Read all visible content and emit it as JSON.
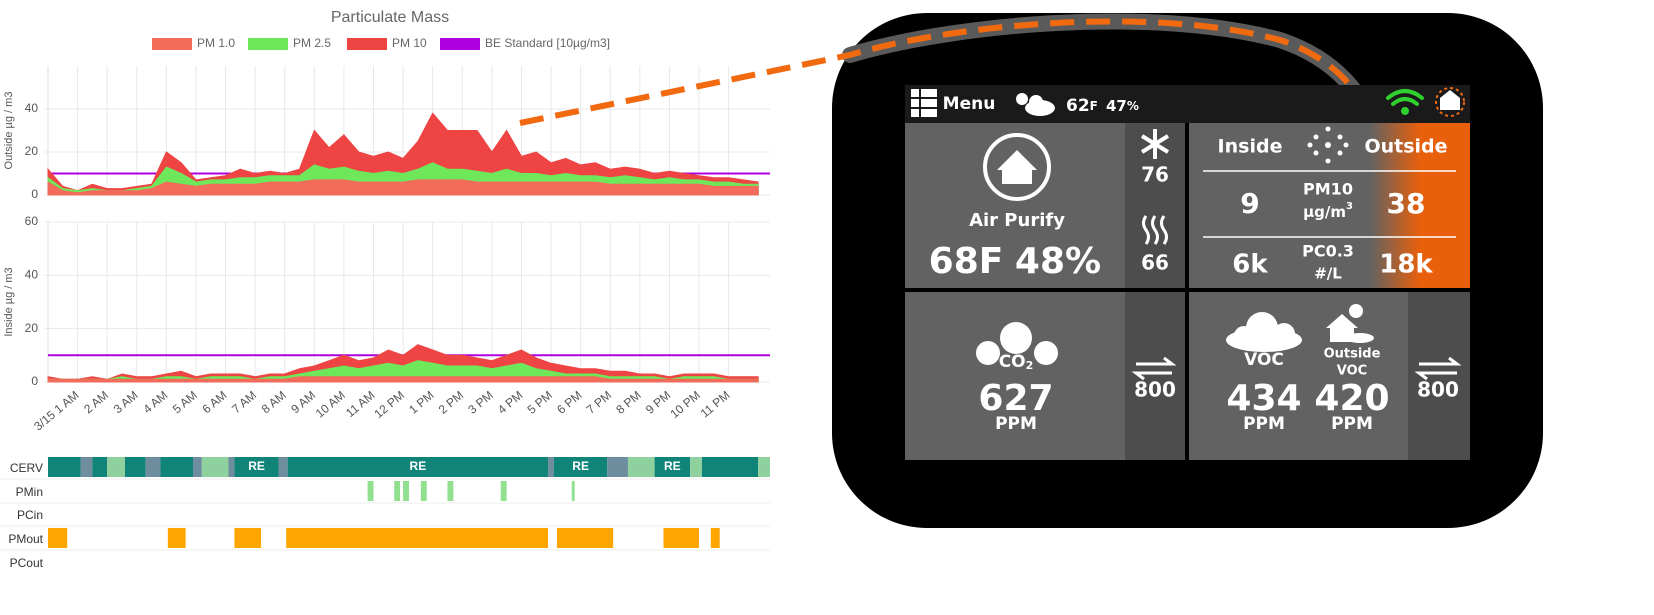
{
  "chart_data": [
    {
      "type": "area",
      "title": "Particulate Mass",
      "ylabel": "Outside µg / m3",
      "grid": true,
      "x": [
        0,
        0.5,
        1,
        1.5,
        2,
        2.5,
        3,
        3.5,
        4,
        4.5,
        5,
        5.5,
        6,
        6.5,
        7,
        7.5,
        8,
        8.5,
        9,
        9.5,
        10,
        10.5,
        11,
        11.5,
        12,
        12.5,
        13,
        13.5,
        14,
        14.5,
        15,
        15.5,
        16,
        16.5,
        17,
        17.5,
        18,
        18.5,
        19,
        19.5,
        20,
        20.5,
        21,
        21.5,
        22,
        22.5,
        23,
        23.5,
        24
      ],
      "xlim": [
        0,
        24.4
      ],
      "ylim": [
        0,
        60
      ],
      "yticks": [
        0,
        20,
        40
      ],
      "series": [
        {
          "name": "PM 1.0",
          "color": "#f26b5b",
          "values": [
            6,
            2,
            1,
            2,
            2,
            2,
            2,
            3,
            6,
            5,
            4,
            5,
            5,
            5,
            5,
            6,
            6,
            6,
            7,
            7,
            7,
            6,
            6,
            6,
            6,
            7,
            7,
            7,
            7,
            6,
            6,
            6,
            6,
            6,
            6,
            6,
            6,
            6,
            5,
            5,
            5,
            5,
            5,
            5,
            5,
            4,
            4,
            4,
            4
          ]
        },
        {
          "name": "PM 2.5",
          "color": "#6ee85a",
          "values": [
            8,
            3,
            2,
            3,
            2,
            2,
            3,
            4,
            13,
            10,
            6,
            7,
            7,
            8,
            8,
            9,
            9,
            9,
            14,
            12,
            13,
            11,
            10,
            11,
            10,
            12,
            15,
            12,
            12,
            11,
            10,
            12,
            10,
            10,
            9,
            10,
            9,
            9,
            8,
            9,
            8,
            7,
            8,
            7,
            7,
            6,
            6,
            5,
            5
          ]
        },
        {
          "name": "PM 10",
          "color": "#ee4444",
          "values": [
            12,
            4,
            2,
            5,
            3,
            3,
            4,
            5,
            20,
            15,
            7,
            8,
            9,
            12,
            10,
            11,
            10,
            12,
            30,
            22,
            28,
            20,
            18,
            20,
            17,
            25,
            38,
            30,
            30,
            30,
            20,
            30,
            18,
            20,
            15,
            17,
            14,
            15,
            12,
            13,
            12,
            10,
            11,
            10,
            9,
            8,
            8,
            7,
            6
          ]
        },
        {
          "name": "BE Standard [10µg/m3]",
          "color": "#b000e0",
          "mark": "line",
          "x": [
            0,
            24.4
          ],
          "values": [
            10,
            10
          ]
        }
      ]
    },
    {
      "type": "area",
      "ylabel": "Inside µg / m3",
      "grid": true,
      "x": [
        0,
        0.5,
        1,
        1.5,
        2,
        2.5,
        3,
        3.5,
        4,
        4.5,
        5,
        5.5,
        6,
        6.5,
        7,
        7.5,
        8,
        8.5,
        9,
        9.5,
        10,
        10.5,
        11,
        11.5,
        12,
        12.5,
        13,
        13.5,
        14,
        14.5,
        15,
        15.5,
        16,
        16.5,
        17,
        17.5,
        18,
        18.5,
        19,
        19.5,
        20,
        20.5,
        21,
        21.5,
        22,
        22.5,
        23,
        23.5,
        24
      ],
      "xlim": [
        0,
        24.4
      ],
      "ylim": [
        0,
        60
      ],
      "yticks": [
        0,
        20,
        40,
        60
      ],
      "xticks": [
        {
          "value": 1,
          "label": "3/15 1 AM"
        },
        {
          "value": 2,
          "label": "2 AM"
        },
        {
          "value": 3,
          "label": "3 AM"
        },
        {
          "value": 4,
          "label": "4 AM"
        },
        {
          "value": 5,
          "label": "5 AM"
        },
        {
          "value": 6,
          "label": "6 AM"
        },
        {
          "value": 7,
          "label": "7 AM"
        },
        {
          "value": 8,
          "label": "8 AM"
        },
        {
          "value": 9,
          "label": "9 AM"
        },
        {
          "value": 10,
          "label": "10 AM"
        },
        {
          "value": 11,
          "label": "11 AM"
        },
        {
          "value": 12,
          "label": "12 PM"
        },
        {
          "value": 13,
          "label": "1 PM"
        },
        {
          "value": 14,
          "label": "2 PM"
        },
        {
          "value": 15,
          "label": "3 PM"
        },
        {
          "value": 16,
          "label": "4 PM"
        },
        {
          "value": 17,
          "label": "5 PM"
        },
        {
          "value": 18,
          "label": "6 PM"
        },
        {
          "value": 19,
          "label": "7 PM"
        },
        {
          "value": 20,
          "label": "8 PM"
        },
        {
          "value": 21,
          "label": "9 PM"
        },
        {
          "value": 22,
          "label": "10 PM"
        },
        {
          "value": 23,
          "label": "11 PM"
        }
      ],
      "series": [
        {
          "color": "#f26b5b",
          "values": [
            1,
            1,
            1,
            1,
            1,
            1,
            1,
            1,
            1,
            1,
            1,
            1,
            1,
            1,
            1,
            1,
            1,
            2,
            2,
            2,
            2,
            2,
            2,
            2,
            2,
            2,
            2,
            2,
            2,
            2,
            2,
            2,
            2,
            2,
            2,
            2,
            2,
            2,
            1,
            1,
            1,
            1,
            1,
            1,
            1,
            1,
            1,
            1,
            1
          ]
        },
        {
          "color": "#6ee85a",
          "values": [
            1,
            1,
            1,
            1,
            1,
            2,
            1,
            1,
            2,
            2,
            1,
            2,
            2,
            2,
            1,
            2,
            2,
            3,
            4,
            5,
            6,
            5,
            6,
            7,
            6,
            8,
            7,
            6,
            6,
            6,
            5,
            6,
            7,
            5,
            4,
            3,
            3,
            3,
            2,
            2,
            2,
            2,
            1,
            2,
            2,
            2,
            1,
            1,
            1
          ]
        },
        {
          "color": "#ee4444",
          "values": [
            2,
            1,
            1,
            2,
            1,
            3,
            2,
            2,
            3,
            4,
            2,
            3,
            3,
            3,
            2,
            3,
            3,
            5,
            6,
            8,
            10,
            8,
            9,
            12,
            10,
            14,
            12,
            10,
            10,
            9,
            8,
            10,
            12,
            9,
            7,
            6,
            5,
            5,
            4,
            4,
            3,
            3,
            2,
            3,
            3,
            3,
            2,
            2,
            2
          ]
        },
        {
          "color": "#b000e0",
          "mark": "line",
          "x": [
            0,
            24.4
          ],
          "values": [
            10,
            10
          ]
        }
      ]
    }
  ],
  "timeline": {
    "xlim": [
      0,
      24.4
    ],
    "rows": [
      {
        "name": "CERV",
        "segments": [
          {
            "start": 0,
            "end": 1.1,
            "color": "#11847a"
          },
          {
            "start": 1.1,
            "end": 1.5,
            "color": "#6e8ea0"
          },
          {
            "start": 1.5,
            "end": 2.0,
            "color": "#11847a"
          },
          {
            "start": 2.0,
            "end": 2.6,
            "color": "#8fd19e"
          },
          {
            "start": 2.6,
            "end": 3.3,
            "color": "#11847a"
          },
          {
            "start": 3.3,
            "end": 3.8,
            "color": "#6e8ea0"
          },
          {
            "start": 3.8,
            "end": 4.9,
            "color": "#11847a"
          },
          {
            "start": 4.9,
            "end": 5.2,
            "color": "#6e8ea0"
          },
          {
            "start": 5.2,
            "end": 6.1,
            "color": "#8fd19e"
          },
          {
            "start": 6.1,
            "end": 6.3,
            "color": "#6e8ea0"
          },
          {
            "start": 6.3,
            "end": 7.8,
            "color": "#11847a",
            "label": "RE"
          },
          {
            "start": 7.8,
            "end": 8.1,
            "color": "#6e8ea0"
          },
          {
            "start": 8.1,
            "end": 16.9,
            "color": "#11847a",
            "label": "RE"
          },
          {
            "start": 16.9,
            "end": 17.1,
            "color": "#6e8ea0"
          },
          {
            "start": 17.1,
            "end": 18.9,
            "color": "#11847a",
            "label": "RE"
          },
          {
            "start": 18.9,
            "end": 19.6,
            "color": "#6e8ea0"
          },
          {
            "start": 19.6,
            "end": 20.5,
            "color": "#8fd19e"
          },
          {
            "start": 20.5,
            "end": 21.7,
            "color": "#11847a",
            "label": "RE"
          },
          {
            "start": 21.7,
            "end": 22.1,
            "color": "#8fd19e"
          },
          {
            "start": 22.1,
            "end": 24.0,
            "color": "#11847a"
          },
          {
            "start": 24.0,
            "end": 24.4,
            "color": "#8fd19e"
          }
        ]
      },
      {
        "name": "PMin",
        "segments": [
          {
            "start": 10.8,
            "end": 11.0,
            "color": "#90e090"
          },
          {
            "start": 11.7,
            "end": 11.9,
            "color": "#90e090"
          },
          {
            "start": 12.0,
            "end": 12.2,
            "color": "#90e090"
          },
          {
            "start": 12.6,
            "end": 12.8,
            "color": "#90e090"
          },
          {
            "start": 13.5,
            "end": 13.7,
            "color": "#90e090"
          },
          {
            "start": 15.3,
            "end": 15.5,
            "color": "#90e090"
          },
          {
            "start": 17.7,
            "end": 17.8,
            "color": "#90e090"
          }
        ]
      },
      {
        "name": "PCin",
        "segments": []
      },
      {
        "name": "PMout",
        "segments": [
          {
            "start": 0,
            "end": 0.65,
            "color": "#ffa500"
          },
          {
            "start": 4.05,
            "end": 4.65,
            "color": "#ffa500"
          },
          {
            "start": 6.3,
            "end": 7.2,
            "color": "#ffa500"
          },
          {
            "start": 8.05,
            "end": 16.9,
            "color": "#ffa500"
          },
          {
            "start": 17.2,
            "end": 19.1,
            "color": "#ffa500"
          },
          {
            "start": 20.8,
            "end": 22.0,
            "color": "#ffa500"
          },
          {
            "start": 22.4,
            "end": 22.7,
            "color": "#ffa500"
          }
        ]
      },
      {
        "name": "PCout",
        "segments": []
      }
    ]
  },
  "device": {
    "menu": "Menu",
    "weather": {
      "temp": 62,
      "temp_unit": "F",
      "humidity": 47,
      "humidity_unit": "%"
    },
    "purify": {
      "label": "Air Purify",
      "temp": "68F",
      "humidity": "48%",
      "cool": 76,
      "heat": 66
    },
    "particles": {
      "inside_header": "Inside",
      "outside_header": "Outside",
      "rows": [
        {
          "inside": 9,
          "name": "PM10",
          "unit": "µg/m",
          "unit_exp": "3",
          "outside": 38
        },
        {
          "inside": "6k",
          "name": "PC0.3",
          "unit": "#/L",
          "outside": "18k"
        }
      ]
    },
    "co2": {
      "label": "CO",
      "label_sub": "2",
      "value": 627,
      "unit": "PPM",
      "setpoint": 800
    },
    "voc": {
      "label": "VOC",
      "value": 434,
      "unit": "PPM",
      "outside_label": "Outside",
      "outside_label2": "VOC",
      "outside_value": 420,
      "outside_unit": "PPM",
      "setpoint": 800
    }
  }
}
